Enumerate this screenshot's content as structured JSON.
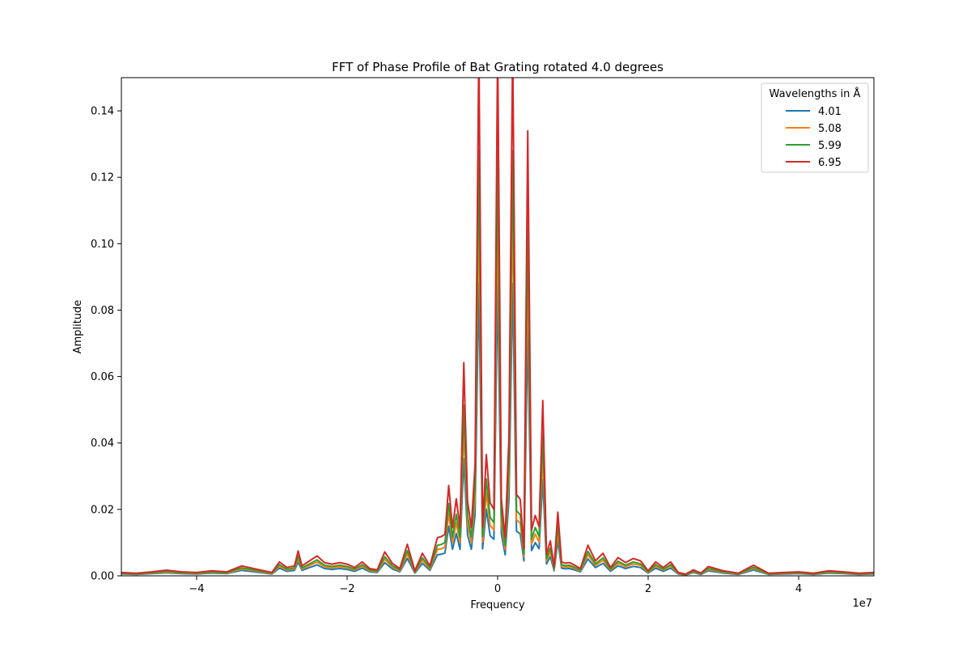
{
  "chart_data": {
    "type": "line",
    "title": "FFT of Phase Profile of Bat Grating rotated 4.0 degrees",
    "xlabel": "Frequency",
    "ylabel": "Amplitude",
    "x_offset_label": "1e7",
    "xlim": [
      -50000000,
      50000000
    ],
    "ylim": [
      0,
      0.15
    ],
    "x_ticks": [
      -40000000,
      -20000000,
      0,
      20000000,
      40000000
    ],
    "x_tick_labels": [
      "−4",
      "−2",
      "0",
      "2",
      "4"
    ],
    "y_ticks": [
      0,
      0.02,
      0.04,
      0.06,
      0.08,
      0.1,
      0.12,
      0.14
    ],
    "y_tick_labels": [
      "0.00",
      "0.02",
      "0.04",
      "0.06",
      "0.08",
      "0.10",
      "0.12",
      "0.14"
    ],
    "grid": false,
    "legend": {
      "title": "Wavelengths in Å",
      "position": "top-right"
    },
    "series": [
      {
        "name": "4.01",
        "color": "#1f77b4",
        "scale": 0.55
      },
      {
        "name": "5.08",
        "color": "#ff7f0e",
        "scale": 0.69
      },
      {
        "name": "5.99",
        "color": "#2ca02c",
        "scale": 0.8
      },
      {
        "name": "6.95",
        "color": "#d62728",
        "scale": 1.0
      }
    ],
    "base_profile_x": [
      -50000000,
      -48000000,
      -46000000,
      -44000000,
      -42000000,
      -40000000,
      -38000000,
      -36000000,
      -34000000,
      -32000000,
      -30000000,
      -29000000,
      -28000000,
      -27000000,
      -26500000,
      -26000000,
      -25000000,
      -24000000,
      -23000000,
      -22000000,
      -21000000,
      -20000000,
      -19000000,
      -18000000,
      -17000000,
      -16000000,
      -15000000,
      -14000000,
      -13000000,
      -12000000,
      -11000000,
      -10000000,
      -9000000,
      -8000000,
      -7500000,
      -7000000,
      -6500000,
      -6000000,
      -5500000,
      -5000000,
      -4500000,
      -4000000,
      -3500000,
      -3000000,
      -2500000,
      -2000000,
      -1500000,
      -1000000,
      -500000,
      0,
      500000,
      1000000,
      1500000,
      2000000,
      2500000,
      3000000,
      3500000,
      4000000,
      4500000,
      5000000,
      5500000,
      6000000,
      6500000,
      7000000,
      7500000,
      8000000,
      8500000,
      9000000,
      9500000,
      10000000,
      11000000,
      12000000,
      13000000,
      14000000,
      15000000,
      16000000,
      17000000,
      18000000,
      19000000,
      20000000,
      21000000,
      22000000,
      23000000,
      24000000,
      25000000,
      26000000,
      27000000,
      28000000,
      30000000,
      32000000,
      34000000,
      36000000,
      38000000,
      40000000,
      42000000,
      44000000,
      46000000,
      48000000,
      50000000
    ],
    "base_profile_y": [
      0.001,
      0.0008,
      0.0012,
      0.0017,
      0.0012,
      0.001,
      0.0015,
      0.0012,
      0.003,
      0.002,
      0.001,
      0.0042,
      0.0025,
      0.003,
      0.0075,
      0.003,
      0.0045,
      0.006,
      0.004,
      0.0035,
      0.004,
      0.0035,
      0.0025,
      0.0042,
      0.0022,
      0.0018,
      0.0072,
      0.0038,
      0.0022,
      0.0095,
      0.0015,
      0.0068,
      0.003,
      0.0115,
      0.0118,
      0.0125,
      0.0272,
      0.0145,
      0.0232,
      0.0145,
      0.0642,
      0.0225,
      0.0145,
      0.0335,
      0.16,
      0.0148,
      0.0365,
      0.022,
      0.02,
      0.16,
      0.023,
      0.0115,
      0.042,
      0.16,
      0.0245,
      0.023,
      0.0082,
      0.134,
      0.0138,
      0.0182,
      0.0148,
      0.0528,
      0.0065,
      0.0105,
      0.0028,
      0.0192,
      0.0042,
      0.0038,
      0.004,
      0.0035,
      0.0022,
      0.0092,
      0.0045,
      0.0068,
      0.0025,
      0.0055,
      0.004,
      0.0052,
      0.0045,
      0.0015,
      0.0042,
      0.0025,
      0.0042,
      0.001,
      0.0005,
      0.0018,
      0.0008,
      0.0028,
      0.0015,
      0.0008,
      0.0032,
      0.0008,
      0.001,
      0.0012,
      0.0008,
      0.0015,
      0.0012,
      0.0008,
      0.001
    ]
  }
}
